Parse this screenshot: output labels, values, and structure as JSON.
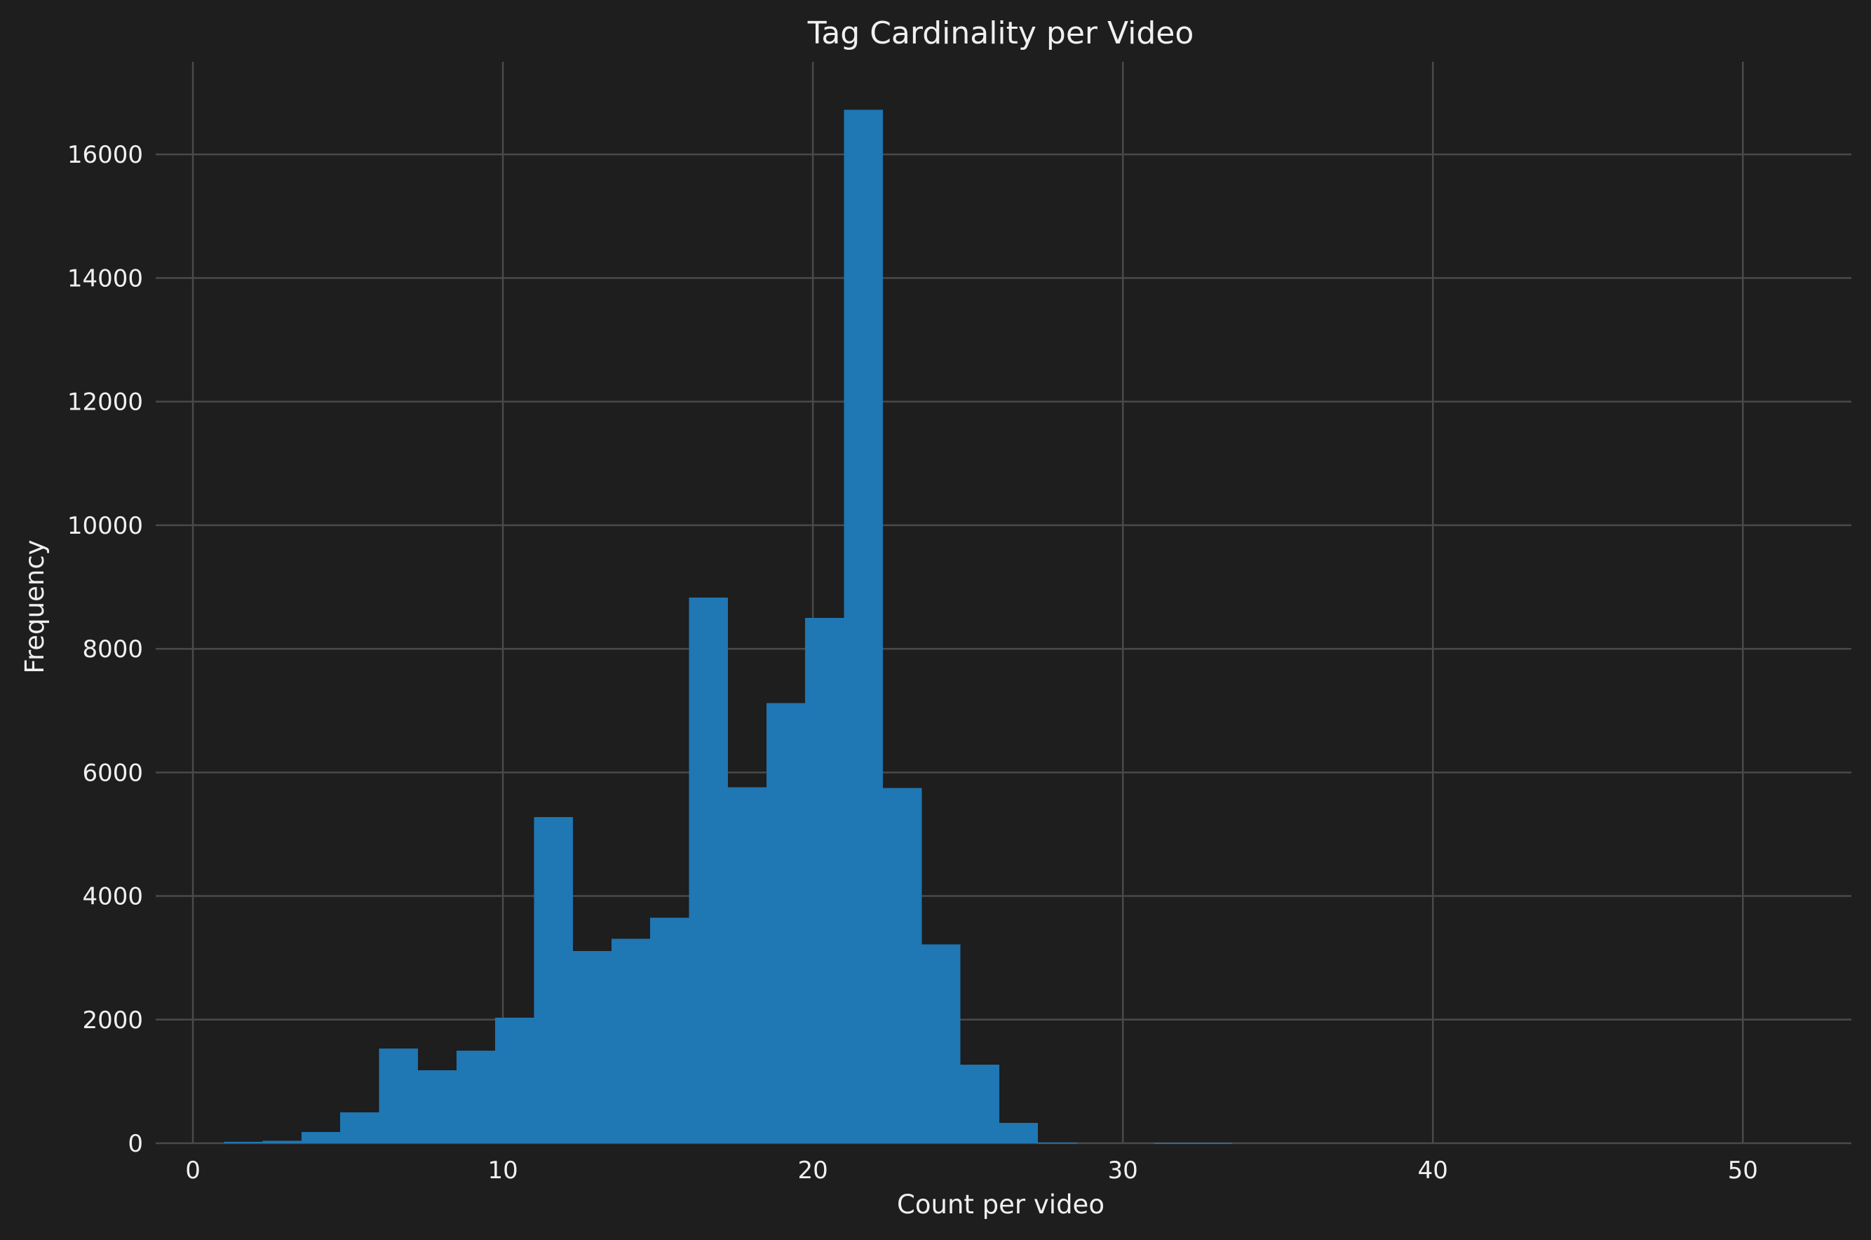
{
  "chart_data": {
    "type": "bar",
    "title": "Tag Cardinality per Video",
    "xlabel": "Count per video",
    "ylabel": "Frequency",
    "xlim": [
      -1.2,
      53.5
    ],
    "ylim": [
      0,
      17500
    ],
    "xticks": [
      0,
      10,
      20,
      30,
      40,
      50
    ],
    "yticks": [
      0,
      2000,
      4000,
      6000,
      8000,
      10000,
      12000,
      14000,
      16000
    ],
    "grid": true,
    "bar_color": "#1f77b4",
    "background": "#1e1e1e",
    "bin_start": 1.0,
    "bin_width": 1.25,
    "values": [
      20,
      40,
      180,
      500,
      1530,
      1180,
      1500,
      2030,
      5280,
      3110,
      3310,
      3650,
      8830,
      5760,
      7120,
      8500,
      16720,
      5750,
      3220,
      1270,
      330,
      10,
      0,
      0,
      5,
      5,
      0,
      0,
      0,
      0,
      0,
      0,
      0,
      0,
      0,
      0,
      0,
      0,
      0,
      0
    ]
  }
}
